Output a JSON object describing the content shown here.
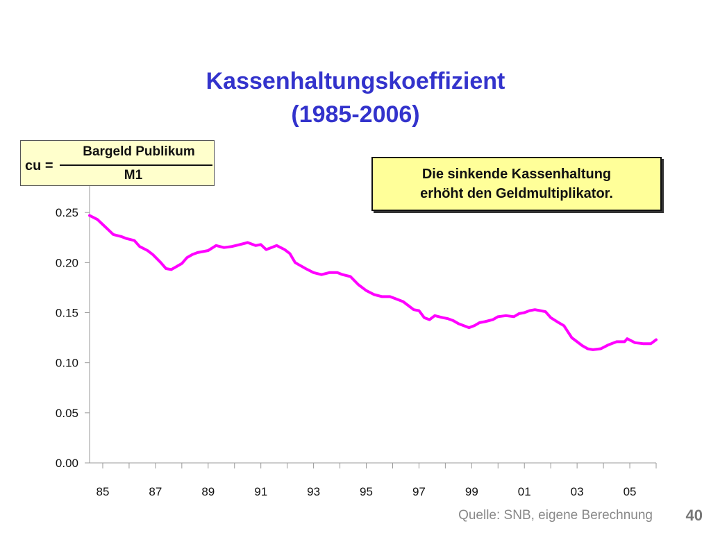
{
  "title": {
    "line1": "Kassenhaltungskoeffizient",
    "line2": "(1985-2006)"
  },
  "formula": {
    "lhs": "cu =",
    "numerator": "Bargeld Publikum",
    "denominator": "M1"
  },
  "note": {
    "line1": "Die sinkende Kassenhaltung",
    "line2": "erhöht den Geldmultiplikator."
  },
  "source": "Quelle: SNB, eigene Berechnung",
  "page_number": "40",
  "colors": {
    "title": "#3333cc",
    "line": "#ff00ff",
    "formula_bg": "#ffffcc",
    "note_bg": "#ffff99"
  },
  "chart_data": {
    "type": "line",
    "title": "",
    "xlabel": "",
    "ylabel": "",
    "xlim": [
      1984.5,
      2006
    ],
    "ylim": [
      0,
      0.3
    ],
    "grid": false,
    "y_ticks": [
      "0.00",
      "0.05",
      "0.10",
      "0.15",
      "0.20",
      "0.25"
    ],
    "y_tick_values": [
      0,
      0.05,
      0.1,
      0.15,
      0.2,
      0.25
    ],
    "x_ticks": [
      "85",
      "87",
      "89",
      "91",
      "93",
      "95",
      "97",
      "99",
      "01",
      "03",
      "05"
    ],
    "x_tick_values": [
      1985,
      1987,
      1989,
      1991,
      1993,
      1995,
      1997,
      1999,
      2001,
      2003,
      2005
    ],
    "series": [
      {
        "x": [
          1984.5,
          1984.8,
          1985.0,
          1985.2,
          1985.4,
          1985.7,
          1985.9,
          1986.2,
          1986.4,
          1986.7,
          1986.9,
          1987.2,
          1987.4,
          1987.6,
          1987.8,
          1988.0,
          1988.2,
          1988.4,
          1988.6,
          1988.8,
          1989.0,
          1989.3,
          1989.6,
          1989.9,
          1990.2,
          1990.5,
          1990.8,
          1991.0,
          1991.2,
          1991.4,
          1991.6,
          1991.9,
          1992.1,
          1992.3,
          1992.5,
          1992.7,
          1993.0,
          1993.3,
          1993.6,
          1993.9,
          1994.1,
          1994.4,
          1994.7,
          1995.0,
          1995.3,
          1995.6,
          1995.9,
          1996.1,
          1996.4,
          1996.6,
          1996.8,
          1997.0,
          1997.2,
          1997.4,
          1997.6,
          1997.9,
          1998.1,
          1998.3,
          1998.5,
          1998.7,
          1998.9,
          1999.1,
          1999.3,
          1999.5,
          1999.8,
          2000.0,
          2000.3,
          2000.6,
          2000.8,
          2001.0,
          2001.2,
          2001.4,
          2001.6,
          2001.8,
          2002.0,
          2002.3,
          2002.5,
          2002.8,
          2003.0,
          2003.2,
          2003.4,
          2003.6,
          2003.9,
          2004.2,
          2004.5,
          2004.8,
          2004.9,
          2005.2,
          2005.5,
          2005.8,
          2006.0
        ],
        "y": [
          0.247,
          0.243,
          0.238,
          0.233,
          0.228,
          0.226,
          0.224,
          0.222,
          0.216,
          0.212,
          0.208,
          0.2,
          0.194,
          0.193,
          0.196,
          0.199,
          0.205,
          0.208,
          0.21,
          0.211,
          0.212,
          0.217,
          0.215,
          0.216,
          0.218,
          0.22,
          0.217,
          0.218,
          0.213,
          0.215,
          0.217,
          0.213,
          0.209,
          0.2,
          0.197,
          0.194,
          0.19,
          0.188,
          0.19,
          0.19,
          0.188,
          0.186,
          0.178,
          0.172,
          0.168,
          0.166,
          0.166,
          0.164,
          0.161,
          0.157,
          0.153,
          0.152,
          0.145,
          0.143,
          0.147,
          0.145,
          0.144,
          0.142,
          0.139,
          0.137,
          0.135,
          0.137,
          0.14,
          0.141,
          0.143,
          0.146,
          0.147,
          0.146,
          0.149,
          0.15,
          0.152,
          0.153,
          0.152,
          0.151,
          0.145,
          0.14,
          0.137,
          0.125,
          0.121,
          0.117,
          0.114,
          0.113,
          0.114,
          0.118,
          0.121,
          0.121,
          0.124,
          0.12,
          0.119,
          0.119,
          0.123
        ]
      }
    ]
  }
}
